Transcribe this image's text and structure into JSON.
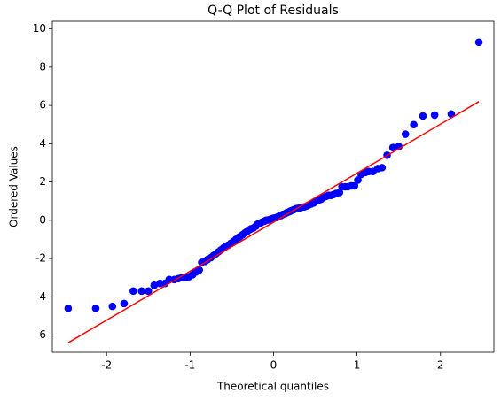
{
  "chart_data": {
    "type": "scatter",
    "title": "Q-Q Plot of Residuals",
    "x_label": "Theoretical quantiles",
    "y_label": "Ordered Values",
    "xlim": [
      -2.65,
      2.64
    ],
    "ylim": [
      -6.9,
      10.4
    ],
    "xticks": [
      -2,
      -1,
      0,
      1,
      2
    ],
    "yticks": [
      -6,
      -4,
      -2,
      0,
      2,
      4,
      6,
      8,
      10
    ],
    "series": [
      {
        "name": "Ordered Values",
        "kind": "points",
        "color": "#0000ff",
        "x": [
          -2.46,
          -2.13,
          -1.93,
          -1.79,
          -1.68,
          -1.58,
          -1.5,
          -1.43,
          -1.36,
          -1.3,
          -1.25,
          -1.19,
          -1.14,
          -1.1,
          -1.05,
          -1.01,
          -0.97,
          -0.93,
          -0.89,
          -0.86,
          -0.82,
          -0.79,
          -0.75,
          -0.72,
          -0.69,
          -0.66,
          -0.63,
          -0.6,
          -0.57,
          -0.54,
          -0.51,
          -0.48,
          -0.45,
          -0.42,
          -0.4,
          -0.37,
          -0.34,
          -0.32,
          -0.29,
          -0.27,
          -0.24,
          -0.21,
          -0.19,
          -0.16,
          -0.14,
          -0.11,
          -0.09,
          -0.06,
          -0.04,
          -0.01,
          0.01,
          0.04,
          0.06,
          0.09,
          0.11,
          0.14,
          0.16,
          0.19,
          0.21,
          0.24,
          0.27,
          0.29,
          0.32,
          0.34,
          0.37,
          0.4,
          0.42,
          0.45,
          0.48,
          0.51,
          0.54,
          0.57,
          0.6,
          0.63,
          0.66,
          0.69,
          0.72,
          0.75,
          0.79,
          0.82,
          0.86,
          0.89,
          0.93,
          0.97,
          1.01,
          1.05,
          1.1,
          1.14,
          1.19,
          1.25,
          1.3,
          1.36,
          1.43,
          1.5,
          1.58,
          1.68,
          1.79,
          1.93,
          2.13,
          2.46
        ],
        "values": [
          -4.6,
          -4.6,
          -4.5,
          -4.35,
          -3.7,
          -3.7,
          -3.7,
          -3.4,
          -3.3,
          -3.3,
          -3.1,
          -3.1,
          -3.05,
          -3.0,
          -3.0,
          -2.95,
          -2.85,
          -2.7,
          -2.6,
          -2.2,
          -2.15,
          -2.05,
          -1.95,
          -1.85,
          -1.75,
          -1.65,
          -1.55,
          -1.45,
          -1.35,
          -1.3,
          -1.2,
          -1.1,
          -1.0,
          -0.9,
          -0.85,
          -0.75,
          -0.65,
          -0.6,
          -0.5,
          -0.45,
          -0.4,
          -0.3,
          -0.2,
          -0.15,
          -0.1,
          -0.05,
          0.0,
          0.02,
          0.05,
          0.1,
          0.12,
          0.15,
          0.2,
          0.25,
          0.3,
          0.35,
          0.4,
          0.45,
          0.5,
          0.55,
          0.6,
          0.62,
          0.65,
          0.68,
          0.7,
          0.75,
          0.8,
          0.85,
          0.9,
          1.0,
          1.05,
          1.1,
          1.2,
          1.25,
          1.3,
          1.3,
          1.35,
          1.4,
          1.45,
          1.75,
          1.75,
          1.75,
          1.8,
          1.8,
          2.1,
          2.4,
          2.5,
          2.55,
          2.55,
          2.7,
          2.75,
          3.4,
          3.8,
          3.85,
          4.5,
          5.0,
          5.45,
          5.5,
          5.55,
          9.3
        ]
      },
      {
        "name": "Fit",
        "kind": "line",
        "color": "#ff0000",
        "x": [
          -2.46,
          2.46
        ],
        "values": [
          -6.4,
          6.2
        ]
      }
    ]
  }
}
